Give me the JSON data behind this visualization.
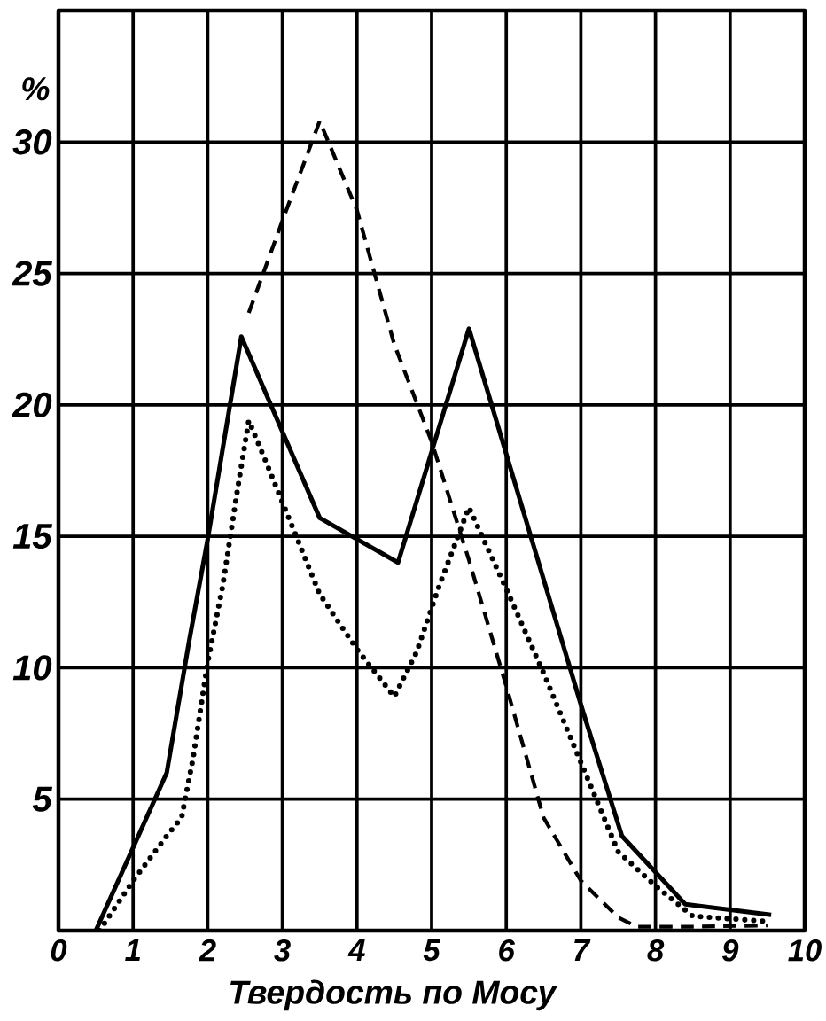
{
  "chart_data": {
    "type": "line",
    "xlabel": "Твердость по Мосу",
    "ylabel": "%",
    "xlim": [
      0,
      10
    ],
    "ylim": [
      0,
      35
    ],
    "xticks": [
      0,
      1,
      2,
      3,
      4,
      5,
      6,
      7,
      8,
      9,
      10
    ],
    "yticks": [
      5,
      10,
      15,
      20,
      25,
      30
    ],
    "grid": true,
    "series": [
      {
        "color": "#000000",
        "line_style": "solid",
        "x": [
          0.5,
          1.45,
          1.75,
          2.0,
          2.45,
          3.5,
          4.55,
          5.5,
          7.0,
          7.55,
          8.4,
          9.55
        ],
        "values": [
          0,
          6.0,
          11.0,
          14.9,
          22.6,
          15.7,
          14.0,
          22.9,
          8.6,
          3.6,
          1.0,
          0.6
        ]
      },
      {
        "color": "#000000",
        "line_style": "dashed",
        "x": [
          2.55,
          3.0,
          3.5,
          4.0,
          4.5,
          5.0,
          5.5,
          6.0,
          6.5,
          7.0,
          7.5,
          7.75,
          8.5,
          9.5
        ],
        "values": [
          23.5,
          27.0,
          30.8,
          27.4,
          22.3,
          18.6,
          14.1,
          9.3,
          4.3,
          1.9,
          0.5,
          0.15,
          0.15,
          0.2
        ]
      },
      {
        "color": "#000000",
        "line_style": "dotted",
        "x": [
          0.55,
          1.0,
          1.45,
          1.65,
          1.8,
          2.0,
          2.2,
          2.4,
          2.55,
          2.8,
          3.1,
          3.5,
          4.0,
          4.5,
          4.8,
          5.1,
          5.5,
          6.0,
          6.5,
          7.0,
          7.5,
          8.0,
          8.5,
          9.5
        ],
        "values": [
          0,
          1.9,
          3.6,
          4.3,
          6.5,
          10.2,
          13.1,
          16.8,
          19.4,
          17.7,
          15.6,
          12.8,
          10.7,
          8.9,
          10.6,
          13.1,
          16.1,
          13.0,
          9.8,
          6.4,
          3.0,
          1.7,
          0.55,
          0.35
        ]
      }
    ]
  }
}
